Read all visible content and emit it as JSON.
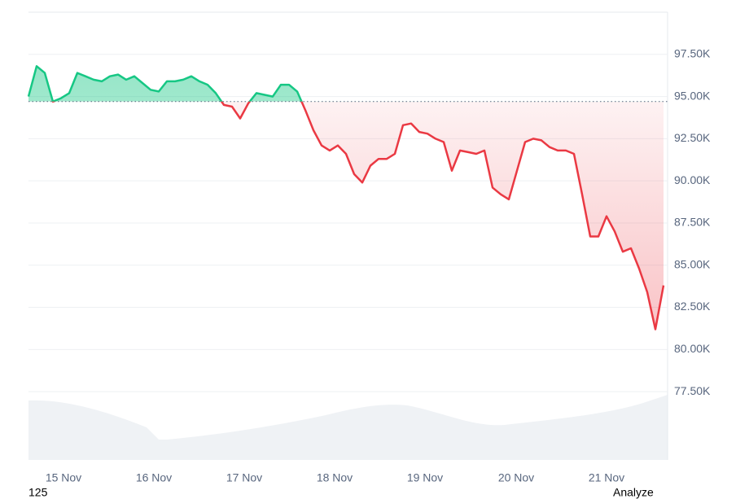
{
  "chart_data": {
    "type": "line",
    "values": [
      95.0,
      96.8,
      96.4,
      94.7,
      94.9,
      95.2,
      96.4,
      96.2,
      96.0,
      95.9,
      96.2,
      96.3,
      96.0,
      96.2,
      95.8,
      95.4,
      95.3,
      95.9,
      95.9,
      96.0,
      96.2,
      95.9,
      95.7,
      95.2,
      94.5,
      94.4,
      93.7,
      94.6,
      95.2,
      95.1,
      95.0,
      95.7,
      95.7,
      95.3,
      94.2,
      93.0,
      92.1,
      91.8,
      92.1,
      91.6,
      90.4,
      89.9,
      90.9,
      91.3,
      91.3,
      91.6,
      93.3,
      93.4,
      92.9,
      92.8,
      92.5,
      92.3,
      90.6,
      91.8,
      91.7,
      91.6,
      91.8,
      89.6,
      89.2,
      88.9,
      90.6,
      92.3,
      92.5,
      92.4,
      92.0,
      91.8,
      91.8,
      91.6,
      89.2,
      86.7,
      86.7,
      87.9,
      87.0,
      85.8,
      86.0,
      84.8,
      83.4,
      81.2,
      83.8
    ],
    "baseline": 94.7,
    "up_color": "#16c784",
    "down_color": "#ea3943",
    "xlim": [
      0,
      78.5
    ],
    "xticks": [
      {
        "value": 4.3,
        "label": "15 Nov"
      },
      {
        "value": 15.4,
        "label": "16 Nov"
      },
      {
        "value": 26.5,
        "label": "17 Nov"
      },
      {
        "value": 37.6,
        "label": "18 Nov"
      },
      {
        "value": 48.7,
        "label": "19 Nov"
      },
      {
        "value": 59.9,
        "label": "20 Nov"
      },
      {
        "value": 71.0,
        "label": "21 Nov"
      }
    ],
    "ylim": [
      73.45,
      100
    ],
    "yticks": [
      {
        "value": 77.5,
        "label": "77.50K"
      },
      {
        "value": 80,
        "label": "80.00K"
      },
      {
        "value": 82.5,
        "label": "82.50K"
      },
      {
        "value": 85,
        "label": "85.00K"
      },
      {
        "value": 87.5,
        "label": "87.50K"
      },
      {
        "value": 90,
        "label": "90.00K"
      },
      {
        "value": 92.5,
        "label": "92.50K"
      },
      {
        "value": 95,
        "label": "95.00K"
      },
      {
        "value": 97.5,
        "label": "97.50K"
      }
    ],
    "grid": true,
    "footer_left": "125",
    "footer_right": "Analyze"
  }
}
